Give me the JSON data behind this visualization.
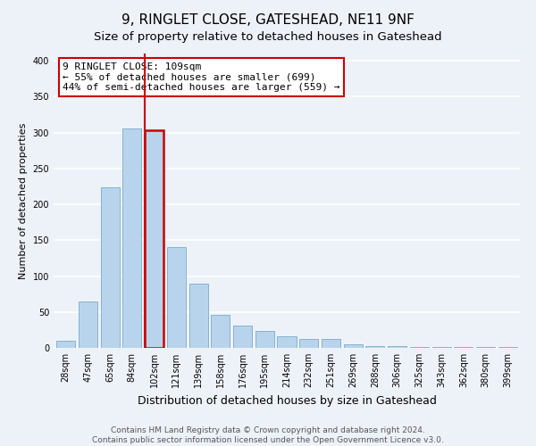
{
  "title": "9, RINGLET CLOSE, GATESHEAD, NE11 9NF",
  "subtitle": "Size of property relative to detached houses in Gateshead",
  "xlabel": "Distribution of detached houses by size in Gateshead",
  "ylabel": "Number of detached properties",
  "bar_labels": [
    "28sqm",
    "47sqm",
    "65sqm",
    "84sqm",
    "102sqm",
    "121sqm",
    "139sqm",
    "158sqm",
    "176sqm",
    "195sqm",
    "214sqm",
    "232sqm",
    "251sqm",
    "269sqm",
    "288sqm",
    "306sqm",
    "325sqm",
    "343sqm",
    "362sqm",
    "380sqm",
    "399sqm"
  ],
  "bar_values": [
    10,
    65,
    224,
    306,
    303,
    140,
    90,
    46,
    31,
    23,
    16,
    13,
    12,
    5,
    3,
    2,
    1,
    1,
    1,
    1,
    1
  ],
  "bar_color": "#b8d4ec",
  "bar_edge_color": "#7aaac8",
  "highlight_bar_index": 4,
  "highlight_color": "#cc0000",
  "annotation_title": "9 RINGLET CLOSE: 109sqm",
  "annotation_line1": "← 55% of detached houses are smaller (699)",
  "annotation_line2": "44% of semi-detached houses are larger (559) →",
  "annotation_box_color": "#ffffff",
  "annotation_box_edge": "#cc0000",
  "ylim": [
    0,
    410
  ],
  "yticks": [
    0,
    50,
    100,
    150,
    200,
    250,
    300,
    350,
    400
  ],
  "footer1": "Contains HM Land Registry data © Crown copyright and database right 2024.",
  "footer2": "Contains public sector information licensed under the Open Government Licence v3.0.",
  "bg_color": "#edf2f9",
  "grid_color": "#ffffff",
  "title_fontsize": 11,
  "subtitle_fontsize": 9.5,
  "xlabel_fontsize": 9,
  "ylabel_fontsize": 8,
  "tick_fontsize": 7,
  "annotation_fontsize": 8,
  "footer_fontsize": 6.5
}
